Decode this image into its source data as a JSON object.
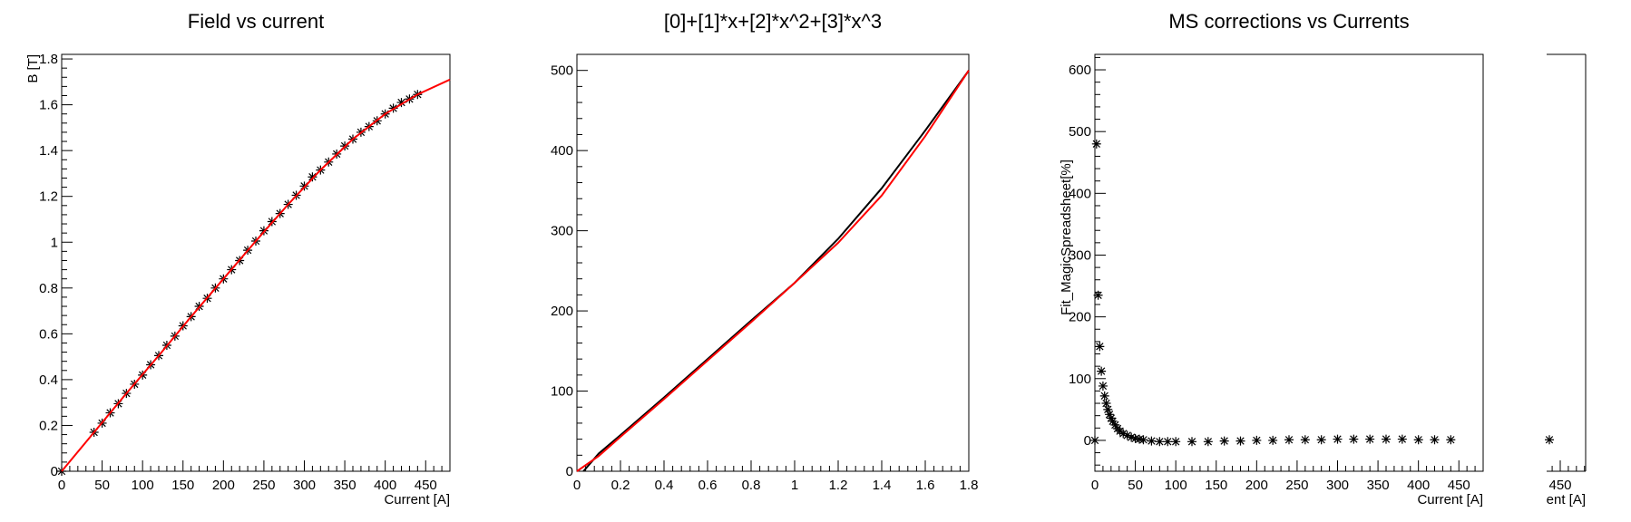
{
  "chart_data": [
    {
      "type": "scatter",
      "title": "Field vs current",
      "xlabel": "Current [A]",
      "ylabel": "B [T]",
      "xlim": [
        0,
        480
      ],
      "ylim": [
        0,
        1.82
      ],
      "x_ticks": [
        "0",
        "50",
        "100",
        "150",
        "200",
        "250",
        "300",
        "350",
        "400",
        "450"
      ],
      "y_ticks": [
        "0",
        "0.2",
        "0.4",
        "0.6",
        "0.8",
        "1",
        "1.2",
        "1.4",
        "1.6",
        "1.8"
      ],
      "series": [
        {
          "marker": "asterisk",
          "color": "#000000",
          "x": [
            0,
            40,
            50,
            60,
            70,
            80,
            90,
            100,
            110,
            120,
            130,
            140,
            150,
            160,
            170,
            180,
            190,
            200,
            210,
            220,
            230,
            240,
            250,
            260,
            270,
            280,
            290,
            300,
            310,
            320,
            330,
            340,
            350,
            360,
            370,
            380,
            390,
            400,
            410,
            420,
            430,
            440
          ],
          "y": [
            0,
            0.17,
            0.21,
            0.255,
            0.295,
            0.34,
            0.38,
            0.42,
            0.465,
            0.505,
            0.55,
            0.59,
            0.635,
            0.675,
            0.72,
            0.755,
            0.8,
            0.84,
            0.88,
            0.92,
            0.965,
            1.005,
            1.05,
            1.09,
            1.125,
            1.165,
            1.205,
            1.245,
            1.285,
            1.315,
            1.35,
            1.385,
            1.42,
            1.45,
            1.48,
            1.505,
            1.53,
            1.56,
            1.585,
            1.61,
            1.625,
            1.645
          ]
        },
        {
          "type": "line",
          "color": "#ff0000",
          "x": [
            0,
            40,
            80,
            120,
            160,
            200,
            240,
            280,
            320,
            360,
            400,
            440,
            480
          ],
          "y": [
            0,
            0.17,
            0.34,
            0.505,
            0.675,
            0.84,
            1.005,
            1.165,
            1.315,
            1.45,
            1.56,
            1.645,
            1.71
          ]
        }
      ]
    },
    {
      "type": "line",
      "title": "[0]+[1]*x+[2]*x^2+[3]*x^3",
      "xlabel": "",
      "ylabel": "",
      "xlim": [
        0,
        1.8
      ],
      "ylim": [
        0,
        520
      ],
      "x_ticks": [
        "0",
        "0.2",
        "0.4",
        "0.6",
        "0.8",
        "1",
        "1.2",
        "1.4",
        "1.6",
        "1.8"
      ],
      "y_ticks": [
        "0",
        "100",
        "200",
        "300",
        "400",
        "500"
      ],
      "series": [
        {
          "color": "#000000",
          "x": [
            0.03,
            0.1,
            0.2,
            0.4,
            0.6,
            0.8,
            1.0,
            1.2,
            1.4,
            1.6,
            1.8
          ],
          "y": [
            0,
            22,
            45,
            92,
            140,
            188,
            235,
            290,
            353,
            425,
            500
          ]
        },
        {
          "color": "#ff0000",
          "x": [
            0.0,
            0.1,
            0.2,
            0.4,
            0.6,
            0.8,
            1.0,
            1.2,
            1.4,
            1.6,
            1.8
          ],
          "y": [
            0,
            19,
            43,
            90,
            138,
            186,
            235,
            285,
            344,
            418,
            500
          ]
        }
      ]
    },
    {
      "type": "scatter",
      "title": "MS corrections vs Currents",
      "xlabel": "Current [A]",
      "ylabel": "Fit_MagicSpreadsheet[%]",
      "xlim": [
        0,
        480
      ],
      "ylim": [
        -50,
        625
      ],
      "x_ticks": [
        "0",
        "50",
        "100",
        "150",
        "200",
        "250",
        "300",
        "350",
        "400",
        "450"
      ],
      "y_ticks": [
        "0",
        "100",
        "200",
        "300",
        "400",
        "500",
        "600"
      ],
      "series": [
        {
          "marker": "asterisk",
          "color": "#000000",
          "x": [
            0,
            2,
            4,
            6,
            8,
            10,
            12,
            14,
            16,
            18,
            20,
            22,
            25,
            28,
            31,
            35,
            40,
            45,
            50,
            55,
            60,
            70,
            80,
            90,
            100,
            120,
            140,
            160,
            180,
            200,
            220,
            240,
            260,
            280,
            300,
            320,
            340,
            360,
            380,
            400,
            420,
            440
          ],
          "y": [
            0,
            480,
            235,
            152,
            112,
            88,
            72,
            60,
            50,
            42,
            36,
            31,
            25,
            19,
            15,
            11,
            8,
            5,
            3,
            2,
            1,
            -1,
            -2,
            -2,
            -2,
            -2,
            -2,
            -1,
            -1,
            0,
            0,
            1,
            1,
            1,
            2,
            2,
            2,
            2,
            2,
            1,
            1,
            1
          ]
        }
      ]
    },
    {
      "type": "scatter",
      "title": "",
      "xlabel": "ent [A]",
      "ylabel": "",
      "x_ticks": [
        "450"
      ],
      "y_ticks": [],
      "series": [
        {
          "marker": "asterisk",
          "color": "#000000",
          "x": [
            440
          ],
          "y": [
            1
          ]
        }
      ]
    }
  ]
}
